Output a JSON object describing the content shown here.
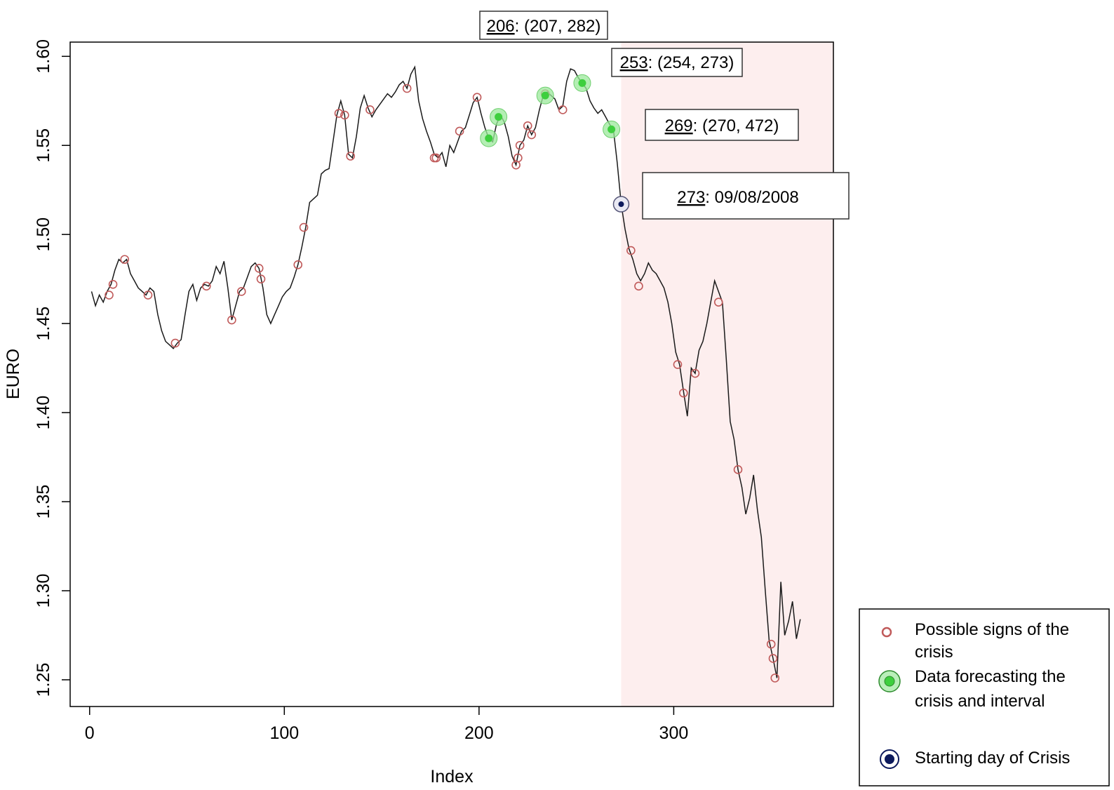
{
  "chart_data": {
    "type": "line",
    "xlabel": "Index",
    "ylabel": "EURO",
    "xlim": [
      -10,
      382
    ],
    "ylim": [
      1.235,
      1.608
    ],
    "xticks": [
      0,
      100,
      200,
      300
    ],
    "xtick_labels": [
      "0",
      "100",
      "200",
      "300"
    ],
    "yticks": [
      1.25,
      1.3,
      1.35,
      1.4,
      1.45,
      1.5,
      1.55,
      1.6
    ],
    "ytick_labels": [
      "1.25",
      "1.30",
      "1.35",
      "1.40",
      "1.45",
      "1.50",
      "1.55",
      "1.60"
    ],
    "grid": false,
    "shaded_region": {
      "x_from": 273,
      "x_to": 382,
      "color": "#fdeeee"
    },
    "series": [
      {
        "values_xy": [
          [
            1,
            1.468
          ],
          [
            3,
            1.46
          ],
          [
            5,
            1.466
          ],
          [
            7,
            1.462
          ],
          [
            9,
            1.468
          ],
          [
            11,
            1.472
          ],
          [
            13,
            1.48
          ],
          [
            15,
            1.486
          ],
          [
            17,
            1.484
          ],
          [
            19,
            1.486
          ],
          [
            21,
            1.478
          ],
          [
            23,
            1.474
          ],
          [
            25,
            1.47
          ],
          [
            27,
            1.468
          ],
          [
            29,
            1.466
          ],
          [
            31,
            1.47
          ],
          [
            33,
            1.468
          ],
          [
            35,
            1.455
          ],
          [
            37,
            1.446
          ],
          [
            39,
            1.44
          ],
          [
            41,
            1.438
          ],
          [
            43,
            1.436
          ],
          [
            45,
            1.439
          ],
          [
            47,
            1.441
          ],
          [
            49,
            1.455
          ],
          [
            51,
            1.468
          ],
          [
            53,
            1.472
          ],
          [
            55,
            1.463
          ],
          [
            57,
            1.47
          ],
          [
            59,
            1.472
          ],
          [
            61,
            1.471
          ],
          [
            63,
            1.474
          ],
          [
            65,
            1.482
          ],
          [
            67,
            1.478
          ],
          [
            69,
            1.485
          ],
          [
            71,
            1.47
          ],
          [
            73,
            1.452
          ],
          [
            75,
            1.46
          ],
          [
            77,
            1.468
          ],
          [
            79,
            1.47
          ],
          [
            81,
            1.476
          ],
          [
            83,
            1.482
          ],
          [
            85,
            1.484
          ],
          [
            87,
            1.481
          ],
          [
            89,
            1.47
          ],
          [
            91,
            1.455
          ],
          [
            93,
            1.45
          ],
          [
            95,
            1.455
          ],
          [
            97,
            1.46
          ],
          [
            99,
            1.465
          ],
          [
            101,
            1.468
          ],
          [
            103,
            1.47
          ],
          [
            105,
            1.476
          ],
          [
            107,
            1.483
          ],
          [
            109,
            1.493
          ],
          [
            111,
            1.504
          ],
          [
            113,
            1.518
          ],
          [
            115,
            1.52
          ],
          [
            117,
            1.522
          ],
          [
            119,
            1.534
          ],
          [
            121,
            1.536
          ],
          [
            123,
            1.537
          ],
          [
            125,
            1.552
          ],
          [
            127,
            1.567
          ],
          [
            129,
            1.575
          ],
          [
            131,
            1.567
          ],
          [
            133,
            1.545
          ],
          [
            135,
            1.543
          ],
          [
            137,
            1.555
          ],
          [
            139,
            1.571
          ],
          [
            141,
            1.578
          ],
          [
            143,
            1.571
          ],
          [
            145,
            1.566
          ],
          [
            147,
            1.57
          ],
          [
            149,
            1.573
          ],
          [
            151,
            1.576
          ],
          [
            153,
            1.579
          ],
          [
            155,
            1.577
          ],
          [
            157,
            1.58
          ],
          [
            159,
            1.584
          ],
          [
            161,
            1.586
          ],
          [
            163,
            1.582
          ],
          [
            165,
            1.59
          ],
          [
            167,
            1.594
          ],
          [
            169,
            1.575
          ],
          [
            171,
            1.565
          ],
          [
            173,
            1.558
          ],
          [
            175,
            1.552
          ],
          [
            177,
            1.545
          ],
          [
            179,
            1.543
          ],
          [
            181,
            1.546
          ],
          [
            183,
            1.538
          ],
          [
            185,
            1.55
          ],
          [
            187,
            1.546
          ],
          [
            189,
            1.552
          ],
          [
            191,
            1.558
          ],
          [
            193,
            1.56
          ],
          [
            195,
            1.567
          ],
          [
            197,
            1.574
          ],
          [
            199,
            1.577
          ],
          [
            201,
            1.568
          ],
          [
            203,
            1.56
          ],
          [
            205,
            1.554
          ],
          [
            207,
            1.552
          ],
          [
            209,
            1.562
          ],
          [
            211,
            1.567
          ],
          [
            213,
            1.563
          ],
          [
            215,
            1.555
          ],
          [
            217,
            1.544
          ],
          [
            219,
            1.539
          ],
          [
            221,
            1.55
          ],
          [
            223,
            1.553
          ],
          [
            225,
            1.561
          ],
          [
            227,
            1.556
          ],
          [
            229,
            1.56
          ],
          [
            231,
            1.57
          ],
          [
            233,
            1.578
          ],
          [
            235,
            1.58
          ],
          [
            237,
            1.578
          ],
          [
            239,
            1.576
          ],
          [
            241,
            1.57
          ],
          [
            243,
            1.572
          ],
          [
            245,
            1.586
          ],
          [
            247,
            1.593
          ],
          [
            249,
            1.592
          ],
          [
            251,
            1.588
          ],
          [
            253,
            1.585
          ],
          [
            255,
            1.582
          ],
          [
            257,
            1.575
          ],
          [
            259,
            1.571
          ],
          [
            261,
            1.568
          ],
          [
            263,
            1.57
          ],
          [
            265,
            1.566
          ],
          [
            267,
            1.562
          ],
          [
            269,
            1.559
          ],
          [
            271,
            1.54
          ],
          [
            273,
            1.517
          ],
          [
            275,
            1.503
          ],
          [
            277,
            1.492
          ],
          [
            279,
            1.486
          ],
          [
            281,
            1.478
          ],
          [
            283,
            1.474
          ],
          [
            285,
            1.478
          ],
          [
            287,
            1.484
          ],
          [
            289,
            1.48
          ],
          [
            291,
            1.478
          ],
          [
            293,
            1.474
          ],
          [
            295,
            1.47
          ],
          [
            297,
            1.462
          ],
          [
            299,
            1.45
          ],
          [
            301,
            1.434
          ],
          [
            303,
            1.427
          ],
          [
            305,
            1.412
          ],
          [
            307,
            1.398
          ],
          [
            309,
            1.425
          ],
          [
            311,
            1.422
          ],
          [
            313,
            1.435
          ],
          [
            315,
            1.44
          ],
          [
            317,
            1.45
          ],
          [
            319,
            1.462
          ],
          [
            321,
            1.474
          ],
          [
            323,
            1.468
          ],
          [
            325,
            1.462
          ],
          [
            327,
            1.43
          ],
          [
            329,
            1.395
          ],
          [
            331,
            1.385
          ],
          [
            333,
            1.368
          ],
          [
            335,
            1.358
          ],
          [
            337,
            1.343
          ],
          [
            339,
            1.352
          ],
          [
            341,
            1.365
          ],
          [
            343,
            1.345
          ],
          [
            345,
            1.33
          ],
          [
            347,
            1.3
          ],
          [
            349,
            1.272
          ],
          [
            351,
            1.262
          ],
          [
            353,
            1.251
          ],
          [
            355,
            1.305
          ],
          [
            357,
            1.275
          ],
          [
            359,
            1.283
          ],
          [
            361,
            1.294
          ],
          [
            363,
            1.273
          ],
          [
            365,
            1.284
          ]
        ]
      }
    ],
    "markers": {
      "possible_signs": [
        [
          10,
          1.466
        ],
        [
          12,
          1.472
        ],
        [
          18,
          1.486
        ],
        [
          30,
          1.466
        ],
        [
          44,
          1.439
        ],
        [
          60,
          1.471
        ],
        [
          73,
          1.452
        ],
        [
          78,
          1.468
        ],
        [
          87,
          1.481
        ],
        [
          88,
          1.475
        ],
        [
          107,
          1.483
        ],
        [
          110,
          1.504
        ],
        [
          128,
          1.568
        ],
        [
          131,
          1.567
        ],
        [
          134,
          1.544
        ],
        [
          144,
          1.57
        ],
        [
          163,
          1.582
        ],
        [
          177,
          1.543
        ],
        [
          178,
          1.543
        ],
        [
          190,
          1.558
        ],
        [
          199,
          1.577
        ],
        [
          219,
          1.539
        ],
        [
          220,
          1.543
        ],
        [
          221,
          1.55
        ],
        [
          225,
          1.561
        ],
        [
          227,
          1.556
        ],
        [
          234,
          1.579
        ],
        [
          243,
          1.57
        ],
        [
          278,
          1.491
        ],
        [
          282,
          1.471
        ],
        [
          302,
          1.427
        ],
        [
          305,
          1.411
        ],
        [
          311,
          1.422
        ],
        [
          323,
          1.462
        ],
        [
          333,
          1.368
        ],
        [
          350,
          1.27
        ],
        [
          351,
          1.262
        ],
        [
          352,
          1.251
        ]
      ],
      "forecast_points": [
        [
          205,
          1.554
        ],
        [
          210,
          1.566
        ],
        [
          234,
          1.578
        ],
        [
          253,
          1.585
        ],
        [
          268,
          1.559
        ]
      ],
      "crisis_start": [
        273,
        1.517
      ]
    },
    "annotations": [
      {
        "prefix": "206",
        "suffix": ": (207, 282)"
      },
      {
        "prefix": "253",
        "suffix": ": (254, 273)"
      },
      {
        "prefix": "269",
        "suffix": ": (270, 472)"
      },
      {
        "prefix": "273",
        "suffix": ": 09/08/2008"
      }
    ],
    "legend": {
      "placement": "bottom-right",
      "entries": [
        {
          "lines": [
            "Possible signs of the",
            "crisis"
          ]
        },
        {
          "lines": [
            "Data forecasting the",
            "crisis and interval"
          ]
        },
        {
          "lines": [
            "Starting day of Crisis"
          ]
        }
      ]
    },
    "colors": {
      "line": "#1a1a1a",
      "possible_signs": "#c05a5a",
      "forecast_fill": "#3ecf3e",
      "forecast_ring": "#9be89b",
      "crisis_fill": "#0d1a5c",
      "shade": "#fdeeee"
    }
  }
}
